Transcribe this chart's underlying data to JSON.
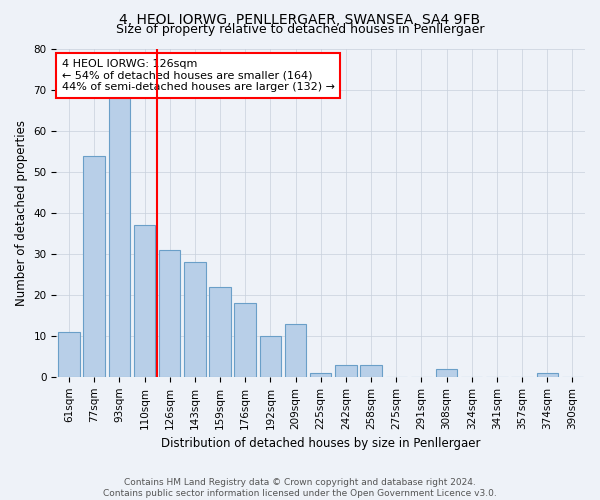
{
  "title": "4, HEOL IORWG, PENLLERGAER, SWANSEA, SA4 9FB",
  "subtitle": "Size of property relative to detached houses in Penllergaer",
  "xlabel": "Distribution of detached houses by size in Penllergaer",
  "ylabel": "Number of detached properties",
  "categories": [
    "61sqm",
    "77sqm",
    "93sqm",
    "110sqm",
    "126sqm",
    "143sqm",
    "159sqm",
    "176sqm",
    "192sqm",
    "209sqm",
    "225sqm",
    "242sqm",
    "258sqm",
    "275sqm",
    "291sqm",
    "308sqm",
    "324sqm",
    "341sqm",
    "357sqm",
    "374sqm",
    "390sqm"
  ],
  "values": [
    11,
    54,
    68,
    37,
    31,
    28,
    22,
    18,
    10,
    13,
    1,
    3,
    3,
    0,
    0,
    2,
    0,
    0,
    0,
    1,
    0
  ],
  "bar_color": "#b8cfe8",
  "bar_edge_color": "#6a9fc8",
  "vline_x": 3.5,
  "vline_color": "red",
  "annotation_text": "4 HEOL IORWG: 126sqm\n← 54% of detached houses are smaller (164)\n44% of semi-detached houses are larger (132) →",
  "annotation_box_color": "white",
  "annotation_box_edge": "red",
  "ylim": [
    0,
    80
  ],
  "yticks": [
    0,
    10,
    20,
    30,
    40,
    50,
    60,
    70,
    80
  ],
  "grid_color": "#c8d0dc",
  "background_color": "#eef2f8",
  "footer_line1": "Contains HM Land Registry data © Crown copyright and database right 2024.",
  "footer_line2": "Contains public sector information licensed under the Open Government Licence v3.0.",
  "title_fontsize": 10,
  "subtitle_fontsize": 9,
  "axis_label_fontsize": 8.5,
  "tick_fontsize": 7.5,
  "annotation_fontsize": 8,
  "footer_fontsize": 6.5
}
